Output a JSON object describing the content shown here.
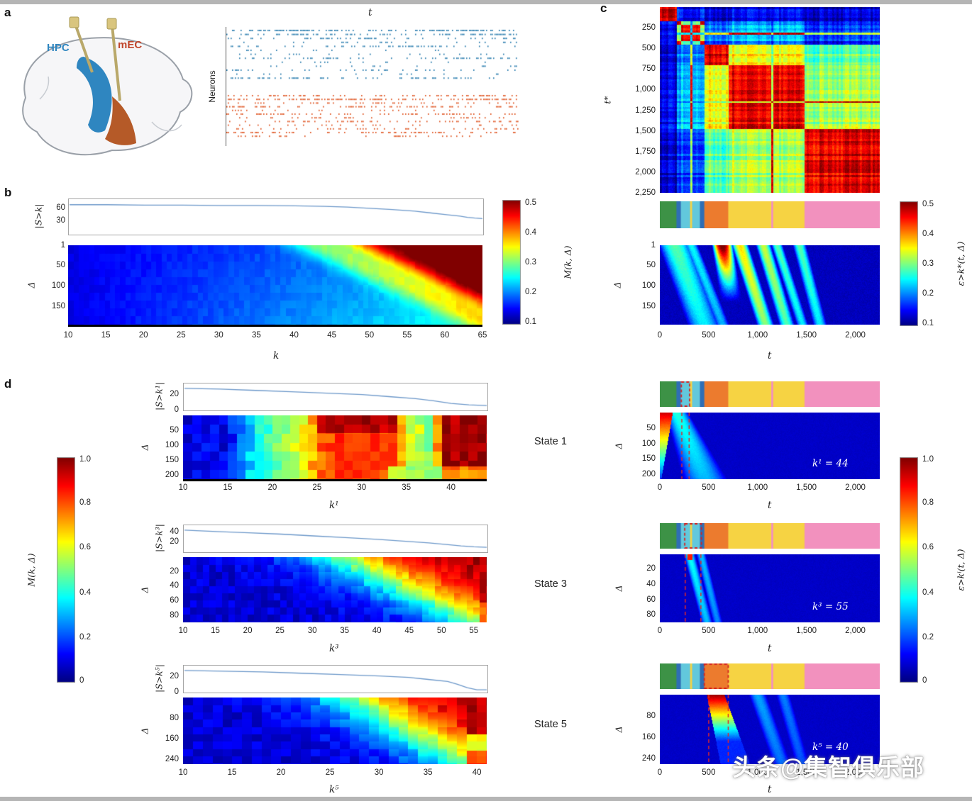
{
  "page": {
    "background": "#ffffff",
    "frame_color": "#b5b5b5"
  },
  "watermark": {
    "text": "头条@集智俱乐部",
    "color": "#ffffff"
  },
  "panels": {
    "a": {
      "label": "a",
      "brain": {
        "hpc_label": "HPC",
        "hpc_color": "#2f86c0",
        "mec_label": "mEC",
        "mec_color": "#c0452b"
      },
      "raster": {
        "title": "t",
        "ylabel": "Neurons"
      }
    },
    "b": {
      "label": "b",
      "sline_ylabel": "|S>k|",
      "heat_ylabel": "Δ",
      "heat_xlabel": "k",
      "colorbar_label": "M(k, Δ)"
    },
    "c": {
      "label": "c",
      "matrix_ylabel": "t*",
      "heat_ylabel": "Δ",
      "heat_xlabel": "t",
      "colorbar_label": "ε>k*(t, Δ)"
    },
    "d": {
      "label": "d",
      "colorbar_left_label": "M(k, Δ)",
      "colorbar_right_label": "ε>kⁱ(t, Δ)",
      "rows": [
        {
          "state_label": "State 1",
          "sline_ylabel": "|S>k¹|",
          "heat_ylabel": "Δ",
          "heat_xlabel": "k¹",
          "right_xlabel": "t",
          "annotation": "k¹ = 44"
        },
        {
          "state_label": "State 3",
          "sline_ylabel": "|S>k³|",
          "heat_ylabel": "Δ",
          "heat_xlabel": "k³",
          "right_xlabel": "t",
          "annotation": "k³ = 55"
        },
        {
          "state_label": "State 5",
          "sline_ylabel": "|S>k⁵|",
          "heat_ylabel": "Δ",
          "heat_xlabel": "k⁵",
          "right_xlabel": "t",
          "annotation": "k⁵ = 40"
        }
      ]
    }
  },
  "chart_data": [
    {
      "id": "raster",
      "type": "scatter",
      "title": "t",
      "ylabel": "Neurons",
      "series": [
        {
          "name": "HPC neurons",
          "color": "#2e7fb0",
          "rows": 13
        },
        {
          "name": "mEC neurons",
          "color": "#e05a28",
          "rows": 12
        }
      ],
      "description": "Spike raster of simultaneously recorded HPC (blue) and mEC (orange) neurons over time t"
    },
    {
      "id": "b_sline",
      "type": "line",
      "color": "#6b97c9",
      "x": [
        10,
        15,
        20,
        25,
        30,
        35,
        40,
        44,
        47,
        50,
        53,
        56,
        58,
        60,
        62,
        63,
        64,
        65
      ],
      "y": [
        70,
        70,
        69,
        69,
        68,
        68,
        67,
        66,
        64,
        61,
        58,
        54,
        50,
        46,
        42,
        39,
        37,
        36
      ],
      "ylim": [
        0,
        80
      ],
      "yticks": {
        "labels": [
          "60",
          "30"
        ],
        "pos": [
          0.25,
          0.625
        ]
      }
    },
    {
      "id": "b_heat",
      "type": "heatmap",
      "xlabel": "k",
      "ylabel": "Δ",
      "xlim": [
        10,
        65
      ],
      "ylim": [
        1,
        195
      ],
      "vlim": [
        0.1,
        0.5
      ],
      "colormap": "jet",
      "xticks": {
        "labels": [
          "10",
          "15",
          "20",
          "25",
          "30",
          "35",
          "40",
          "45",
          "50",
          "55",
          "60",
          "65"
        ],
        "pos": [
          0,
          0.0909,
          0.1818,
          0.2727,
          0.3636,
          0.4545,
          0.5455,
          0.6364,
          0.7273,
          0.8182,
          0.9091,
          1
        ]
      },
      "yticks": {
        "labels": [
          "1",
          "50",
          "100",
          "150"
        ],
        "pos": [
          0,
          0.252,
          0.509,
          0.766
        ]
      },
      "description": "M(k,Δ) ~0.1 for small k; rises to 0.5 (dark red) for k>50 at small Δ; red front shifts to larger k as Δ grows"
    },
    {
      "id": "c_matrix",
      "type": "heatmap",
      "ylabel": "t*",
      "lim": [
        0,
        2250
      ],
      "vlim": [
        0.1,
        0.5
      ],
      "colormap": "jet",
      "yticks": {
        "labels": [
          "250",
          "500",
          "750",
          "1,000",
          "1,250",
          "1,500",
          "1,750",
          "2,000",
          "2,250"
        ],
        "pos": [
          0.1111,
          0.2222,
          0.3333,
          0.4444,
          0.5556,
          0.6667,
          0.7778,
          0.8889,
          1
        ]
      },
      "segments": [
        {
          "t0": 0,
          "t1": 170,
          "state": "g",
          "color": "#3d9246"
        },
        {
          "t0": 170,
          "t1": 215,
          "state": "b",
          "color": "#2f6eb5"
        },
        {
          "t0": 215,
          "t1": 310,
          "state": "c",
          "color": "#62c8dc"
        },
        {
          "t0": 310,
          "t1": 330,
          "state": "y",
          "color": "#f6d343"
        },
        {
          "t0": 330,
          "t1": 410,
          "state": "c",
          "color": "#62c8dc"
        },
        {
          "t0": 410,
          "t1": 455,
          "state": "b",
          "color": "#2f6eb5"
        },
        {
          "t0": 455,
          "t1": 700,
          "state": "o",
          "color": "#ec7b2e"
        },
        {
          "t0": 700,
          "t1": 1140,
          "state": "y",
          "color": "#f6d343"
        },
        {
          "t0": 1140,
          "t1": 1160,
          "state": "p",
          "color": "#f291be"
        },
        {
          "t0": 1160,
          "t1": 1480,
          "state": "y",
          "color": "#f6d343"
        },
        {
          "t0": 1480,
          "t1": 2250,
          "state": "p",
          "color": "#f291be"
        }
      ],
      "pair_similarity": {
        "gb": 0.12,
        "gc": 0.1,
        "gy": 0.1,
        "go": 0.08,
        "gp": 0.08,
        "bc": 0.3,
        "by": 0.18,
        "bo": 0.15,
        "bp": 0.12,
        "cy": 0.22,
        "co": 0.18,
        "cp": 0.15,
        "yo": 0.36,
        "yp": 0.32,
        "op": 0.28
      },
      "description": "Recurrence/similarity matrix over time with block structure per network state; same-state blocks ~0.5 (dark red)"
    },
    {
      "id": "state_bars",
      "type": "bar",
      "tlim": [
        0,
        2250
      ],
      "highlight_boxes": {
        "d1": [
          220,
          305
        ],
        "d3": [
          255,
          425
        ],
        "d5": [
          455,
          700
        ]
      },
      "description": "Colored ethogram of detected states over time (colors as c_matrix.segments)"
    },
    {
      "id": "c_heat",
      "type": "heatmap",
      "xlabel": "t",
      "ylabel": "Δ",
      "xlim": [
        0,
        2250
      ],
      "ylim": [
        1,
        195
      ],
      "vlim": [
        0.1,
        0.5
      ],
      "base": 0.08,
      "xticks": {
        "labels": [
          "0",
          "500",
          "1,000",
          "1,500",
          "2,000"
        ],
        "pos": [
          0,
          0.2222,
          0.4444,
          0.6667,
          0.8889
        ]
      },
      "yticks": {
        "labels": [
          "1",
          "50",
          "100",
          "150"
        ],
        "pos": [
          0,
          0.252,
          0.509,
          0.766
        ]
      },
      "streaks": [
        {
          "t0": 150,
          "slope": 300,
          "w": 170,
          "v": 0.2
        },
        {
          "t0": 320,
          "slope": 320,
          "w": 70,
          "v": 0.16
        },
        {
          "t0": 640,
          "slope": 130,
          "w": 110,
          "v": 0.5,
          "fade": 1.4
        },
        {
          "t0": 820,
          "slope": 260,
          "w": 90,
          "v": 0.3
        },
        {
          "t0": 1060,
          "slope": 240,
          "w": 80,
          "v": 0.26
        },
        {
          "t0": 1200,
          "slope": 260,
          "w": 60,
          "v": 0.2
        },
        {
          "t0": 1430,
          "slope": 210,
          "w": 70,
          "v": 0.2
        }
      ]
    },
    {
      "id": "d1_sline",
      "type": "line",
      "color": "#6b97c9",
      "x": [
        10,
        14,
        18,
        22,
        26,
        30,
        33,
        36,
        38,
        40,
        42,
        44
      ],
      "y": [
        30,
        29,
        27,
        25,
        23,
        21,
        18,
        15,
        12,
        8,
        6,
        5
      ],
      "ylim": [
        0,
        35
      ],
      "yticks": {
        "labels": [
          "20",
          "0"
        ],
        "pos": [
          0.43,
          1
        ]
      }
    },
    {
      "id": "d1_heat",
      "type": "heatmap",
      "xlim": [
        10,
        44
      ],
      "ylim": [
        1,
        215
      ],
      "vlim": [
        0,
        1
      ],
      "xticks": {
        "labels": [
          "10",
          "15",
          "20",
          "25",
          "30",
          "35",
          "40"
        ],
        "pos": [
          0,
          0.1471,
          0.2941,
          0.4412,
          0.5882,
          0.7353,
          0.8824
        ]
      },
      "yticks": {
        "labels": [
          "50",
          "100",
          "150",
          "200"
        ],
        "pos": [
          0.229,
          0.463,
          0.696,
          0.93
        ]
      },
      "k_profile": [
        [
          10,
          0.1
        ],
        [
          14,
          0.11
        ],
        [
          15,
          0.16
        ],
        [
          17,
          0.33
        ],
        [
          20,
          0.48
        ],
        [
          23,
          0.62
        ],
        [
          25,
          0.78
        ],
        [
          27,
          0.83
        ],
        [
          33,
          0.8
        ],
        [
          35,
          0.6
        ],
        [
          37,
          0.52
        ],
        [
          38,
          0.72
        ],
        [
          39,
          0.97
        ],
        [
          44,
          0.97
        ]
      ]
    },
    {
      "id": "d1_right",
      "type": "heatmap",
      "xlim": [
        0,
        2250
      ],
      "ylim": [
        1,
        215
      ],
      "vlim": [
        0,
        1
      ],
      "annotation": "k¹ = 44",
      "dashes": [
        225,
        300
      ],
      "base": 0.07,
      "xticks": {
        "labels": [
          "0",
          "500",
          "1,000",
          "1,500",
          "2,000"
        ],
        "pos": [
          0,
          0.2222,
          0.4444,
          0.6667,
          0.8889
        ]
      },
      "yticks": {
        "labels": [
          "50",
          "100",
          "150",
          "200"
        ],
        "pos": [
          0.229,
          0.463,
          0.696,
          0.93
        ]
      },
      "left_wedge": {
        "t_max": 130,
        "v_top": 0.92
      },
      "streaks": [
        {
          "t0": 170,
          "slope": 290,
          "w": 120,
          "v": 0.34,
          "grow": 0.9,
          "fade": 0.3
        }
      ]
    },
    {
      "id": "d3_sline",
      "type": "line",
      "color": "#6b97c9",
      "x": [
        10,
        15,
        20,
        25,
        30,
        35,
        40,
        44,
        48,
        51,
        53,
        55,
        57
      ],
      "y": [
        47,
        44,
        41,
        38,
        34,
        30,
        26,
        22,
        18,
        14,
        11,
        9,
        8
      ],
      "ylim": [
        0,
        55
      ],
      "yticks": {
        "labels": [
          "40",
          "20"
        ],
        "pos": [
          0.27,
          0.64
        ]
      }
    },
    {
      "id": "d3_heat",
      "type": "heatmap",
      "xlim": [
        10,
        57
      ],
      "ylim": [
        1,
        90
      ],
      "vlim": [
        0,
        1
      ],
      "xticks": {
        "labels": [
          "10",
          "15",
          "20",
          "25",
          "30",
          "35",
          "40",
          "45",
          "50",
          "55"
        ],
        "pos": [
          0,
          0.1064,
          0.2128,
          0.3191,
          0.4255,
          0.5319,
          0.6383,
          0.7447,
          0.8511,
          0.9574
        ]
      },
      "yticks": {
        "labels": [
          "20",
          "40",
          "60",
          "80"
        ],
        "pos": [
          0.213,
          0.438,
          0.663,
          0.888
        ]
      },
      "front": {
        "offset": 0.52,
        "dcoef": 0.45,
        "gain": 9
      }
    },
    {
      "id": "d3_right",
      "type": "heatmap",
      "xlim": [
        0,
        2250
      ],
      "ylim": [
        1,
        90
      ],
      "vlim": [
        0,
        1
      ],
      "annotation": "k³ = 55",
      "dashes": [
        260,
        420
      ],
      "base": 0.07,
      "xticks": {
        "labels": [
          "0",
          "500",
          "1,000",
          "1,500",
          "2,000"
        ],
        "pos": [
          0,
          0.2222,
          0.4444,
          0.6667,
          0.8889
        ]
      },
      "yticks": {
        "labels": [
          "20",
          "40",
          "60",
          "80"
        ],
        "pos": [
          0.213,
          0.438,
          0.663,
          0.888
        ]
      },
      "top_red": {
        "t0": 280,
        "t1": 330,
        "v": 0.85
      },
      "streaks": [
        {
          "t0": 300,
          "slope": 180,
          "w": 60,
          "v": 0.32
        },
        {
          "t0": 420,
          "slope": 170,
          "w": 50,
          "v": 0.25
        }
      ]
    },
    {
      "id": "d5_sline",
      "type": "line",
      "color": "#6b97c9",
      "x": [
        10,
        14,
        18,
        22,
        26,
        30,
        33,
        35,
        37,
        38,
        39,
        40,
        41
      ],
      "y": [
        30,
        29,
        28,
        26,
        24,
        22,
        20,
        17,
        14,
        10,
        5,
        2,
        2
      ],
      "ylim": [
        0,
        35
      ],
      "yticks": {
        "labels": [
          "20",
          "0"
        ],
        "pos": [
          0.43,
          1
        ]
      }
    },
    {
      "id": "d5_heat",
      "type": "heatmap",
      "xlim": [
        10,
        41
      ],
      "ylim": [
        1,
        260
      ],
      "vlim": [
        0,
        1
      ],
      "xticks": {
        "labels": [
          "10",
          "15",
          "20",
          "25",
          "30",
          "35",
          "40"
        ],
        "pos": [
          0,
          0.1613,
          0.3226,
          0.4839,
          0.6452,
          0.8065,
          0.9677
        ]
      },
      "yticks": {
        "labels": [
          "80",
          "160",
          "240"
        ],
        "pos": [
          0.305,
          0.614,
          0.923
        ]
      },
      "front": {
        "offset": 0.55,
        "dcoef": 0.38,
        "gain": 9
      }
    },
    {
      "id": "d5_right",
      "type": "heatmap",
      "xlim": [
        0,
        2250
      ],
      "ylim": [
        1,
        260
      ],
      "vlim": [
        0,
        1
      ],
      "annotation": "k⁵ = 40",
      "dashes": [
        500,
        700
      ],
      "base": 0.07,
      "xticks": {
        "labels": [
          "0",
          "500",
          "1,000",
          "1,500",
          "2,000"
        ],
        "pos": [
          0,
          0.2222,
          0.4444,
          0.6667,
          0.8889
        ]
      },
      "yticks": {
        "labels": [
          "80",
          "160",
          "240"
        ],
        "pos": [
          0.305,
          0.614,
          0.923
        ]
      },
      "wedge": {
        "tL0": 480,
        "tLslope": 140,
        "tR0": 660,
        "tRslope": 260
      },
      "streaks": [
        {
          "t0": 1000,
          "slope": 250,
          "w": 90,
          "v": 0.22
        },
        {
          "t0": 1260,
          "slope": 200,
          "w": 70,
          "v": 0.18
        }
      ]
    },
    {
      "id": "cb_small",
      "type": "colorbar",
      "range": [
        0.1,
        0.5
      ],
      "yticks": {
        "labels": [
          "0.5",
          "0.4",
          "0.3",
          "0.2",
          "0.1"
        ],
        "pos": [
          0.02,
          0.26,
          0.5,
          0.74,
          0.98
        ]
      }
    },
    {
      "id": "cb_unit",
      "type": "colorbar",
      "range": [
        0,
        1
      ],
      "yticks": {
        "labels": [
          "1.0",
          "0.8",
          "0.6",
          "0.4",
          "0.2",
          "0"
        ],
        "pos": [
          0.01,
          0.2,
          0.4,
          0.6,
          0.8,
          0.99
        ]
      }
    }
  ]
}
